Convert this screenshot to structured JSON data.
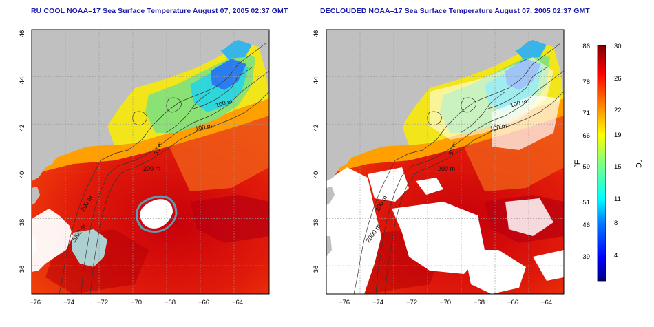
{
  "left_panel": {
    "title": "RU COOL NOAA–17 Sea Surface Temperature August 07, 2005 02:37 GMT",
    "contour_labels": [
      "100 m",
      "100 m",
      "50 m",
      "200 m",
      "200 m",
      "2000 m"
    ]
  },
  "right_panel": {
    "title": "DECLOUDED NOAA–17 Sea Surface Temperature August 07, 2005 02:37 GMT",
    "contour_labels": [
      "100 m",
      "100 m",
      "50 m",
      "200 m",
      "200 m",
      "2000 m"
    ]
  },
  "axes": {
    "x_ticks": [
      "−76",
      "−74",
      "−72",
      "−70",
      "−68",
      "−66",
      "−64"
    ],
    "y_ticks": [
      "46",
      "44",
      "42",
      "40",
      "38",
      "36"
    ]
  },
  "colorbar": {
    "fahrenheit_label": "°F",
    "celsius_label": "°C",
    "fahrenheit_ticks": [
      "86",
      "78",
      "71",
      "66",
      "59",
      "51",
      "46",
      "39"
    ],
    "celsius_ticks": [
      "30",
      "26",
      "22",
      "19",
      "15",
      "11",
      "8",
      "4"
    ],
    "colors": [
      "#00007f",
      "#0000ff",
      "#0080ff",
      "#00ffff",
      "#80ff80",
      "#ffff00",
      "#ff8000",
      "#ff0000",
      "#7f0000"
    ]
  }
}
